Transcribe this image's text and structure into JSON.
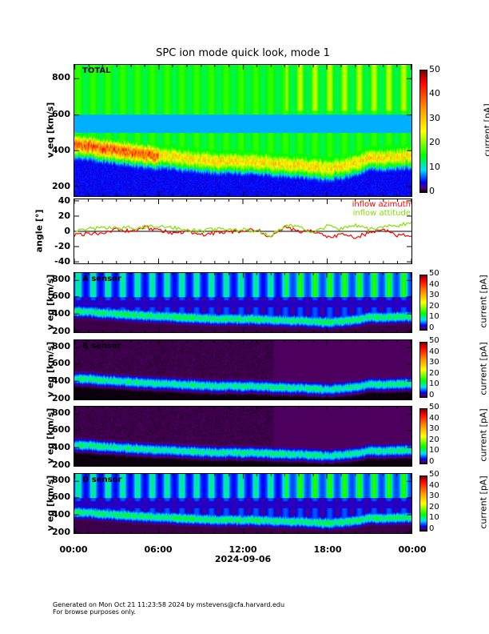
{
  "chart_data": {
    "type": "heatmap",
    "title": "SPC ion mode quick look, mode 1",
    "xlabel": "2024-09-06",
    "xticks": [
      "00:00",
      "06:00",
      "12:00",
      "18:00",
      "00:00"
    ],
    "xlim_hours": [
      0,
      24
    ],
    "panels": [
      {
        "key": "total",
        "label": "TOTAL",
        "ylabel": "v_eq [km/s]",
        "ylim": [
          145,
          875
        ],
        "yticks": [
          200,
          400,
          600,
          800
        ],
        "cbar_label": "current [pA]",
        "cbar_ticks": [
          0,
          10,
          20,
          30,
          40,
          50
        ],
        "cbar_range": [
          0,
          50
        ]
      },
      {
        "key": "a",
        "label": "A sensor",
        "ylabel": "v_eq [km/s]",
        "ylim": [
          180,
          880
        ],
        "yticks": [
          200,
          400,
          600,
          800
        ],
        "cbar_label": "current [pA]",
        "cbar_ticks": [
          0,
          10,
          20,
          30,
          40,
          50
        ],
        "cbar_range": [
          0,
          50
        ]
      },
      {
        "key": "b",
        "label": "B sensor",
        "ylabel": "v_eq [km/s]",
        "ylim": [
          180,
          880
        ],
        "yticks": [
          200,
          400,
          600,
          800
        ],
        "cbar_label": "current [pA]",
        "cbar_ticks": [
          0,
          10,
          20,
          30,
          40,
          50
        ],
        "cbar_range": [
          0,
          50
        ]
      },
      {
        "key": "c",
        "label": "",
        "ylabel": "v_eq [km/s]",
        "ylim": [
          180,
          880
        ],
        "yticks": [
          200,
          400,
          600,
          800
        ],
        "cbar_label": "current [pA]",
        "cbar_ticks": [
          0,
          10,
          20,
          30,
          40,
          50
        ],
        "cbar_range": [
          0,
          50
        ]
      },
      {
        "key": "d",
        "label": "D sensor",
        "ylabel": "v_eq [km/s]",
        "ylim": [
          180,
          880
        ],
        "yticks": [
          200,
          400,
          600,
          800
        ],
        "cbar_label": "current [pA]",
        "cbar_ticks": [
          0,
          10,
          20,
          30,
          40,
          50
        ],
        "cbar_range": [
          0,
          50
        ]
      }
    ],
    "peak_speed_hourly": [
      430,
      425,
      410,
      400,
      390,
      380,
      370,
      365,
      360,
      350,
      340,
      340,
      340,
      335,
      330,
      325,
      320,
      310,
      300,
      315,
      330,
      360,
      360,
      365,
      370
    ],
    "angle_panel": {
      "type": "line",
      "ylabel": "angle [°]",
      "ylim": [
        -42,
        42
      ],
      "yticks": [
        40,
        20,
        0,
        -20,
        -40
      ],
      "series": [
        {
          "name": "inflow azimuth",
          "color": "#ff0000",
          "hourly": [
            -5,
            -3,
            -2,
            3,
            0,
            5,
            2,
            -3,
            0,
            -5,
            -2,
            0,
            0,
            2,
            -8,
            5,
            0,
            0,
            -8,
            -4,
            -8,
            -2,
            3,
            -5,
            -6
          ]
        },
        {
          "name": "inflow attitude",
          "color": "#80e000",
          "hourly": [
            2,
            3,
            5,
            4,
            5,
            5,
            7,
            5,
            2,
            0,
            3,
            2,
            2,
            0,
            -6,
            8,
            6,
            -2,
            7,
            3,
            8,
            3,
            5,
            8,
            10
          ]
        }
      ]
    }
  },
  "footer": {
    "line1": "Generated on Mon Oct 21 11:23:58 2024 by mstevens@cfa.harvard.edu",
    "line2": "For browse purposes only."
  }
}
